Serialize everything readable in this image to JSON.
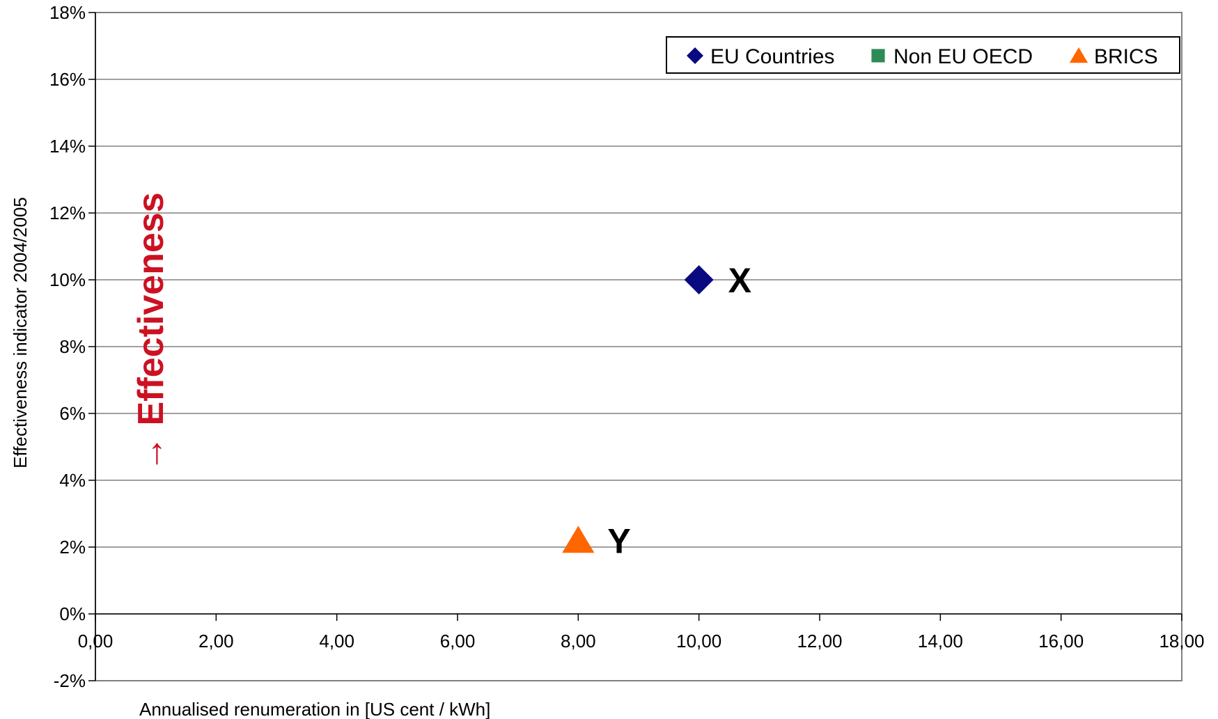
{
  "chart_data": {
    "type": "scatter",
    "title": "",
    "xlabel": "Annualised renumeration in [US cent / kWh]",
    "ylabel": "Effectiveness indicator 2004/2005",
    "xlim": [
      0,
      18
    ],
    "ylim": [
      -2,
      18
    ],
    "x_ticks": [
      "0,00",
      "2,00",
      "4,00",
      "6,00",
      "8,00",
      "10,00",
      "12,00",
      "14,00",
      "16,00",
      "18,00"
    ],
    "y_ticks": [
      "-2%",
      "0%",
      "2%",
      "4%",
      "6%",
      "8%",
      "10%",
      "12%",
      "14%",
      "16%",
      "18%"
    ],
    "grid": "horizontal",
    "legend_position": "top-right",
    "series": [
      {
        "name": "EU Countries",
        "marker": "diamond",
        "color": "#0a0a80",
        "points": [
          {
            "x": 10.0,
            "y": 10.0,
            "label": "X"
          }
        ]
      },
      {
        "name": "Non EU OECD",
        "marker": "square",
        "color": "#2e8b57",
        "points": []
      },
      {
        "name": "BRICS",
        "marker": "triangle",
        "color": "#ff6600",
        "points": [
          {
            "x": 8.0,
            "y": 2.2,
            "label": "Y"
          }
        ]
      }
    ],
    "annotation": {
      "text": "→ Effectiveness",
      "color": "#cc1122"
    }
  }
}
